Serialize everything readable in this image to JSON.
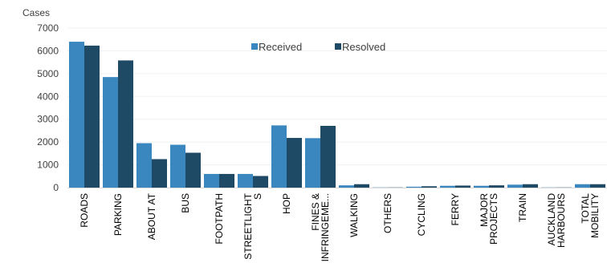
{
  "chart_data": {
    "type": "bar",
    "ylabel": "Cases",
    "ylim": [
      0,
      7000
    ],
    "yticks": [
      0,
      1000,
      2000,
      3000,
      4000,
      5000,
      6000,
      7000
    ],
    "grid": true,
    "legend_position": "top-center",
    "categories": [
      [
        "ROADS"
      ],
      [
        "PARKING"
      ],
      [
        "ABOUT AT"
      ],
      [
        "BUS"
      ],
      [
        "FOOTPATH"
      ],
      [
        "STREETLIGHT",
        "S"
      ],
      [
        "HOP"
      ],
      [
        "FINES &",
        "INFRINGEME..."
      ],
      [
        "WALKING"
      ],
      [
        "OTHERS"
      ],
      [
        "CYCLING"
      ],
      [
        "FERRY"
      ],
      [
        "MAJOR",
        "PROJECTS"
      ],
      [
        "TRAIN"
      ],
      [
        "AUCKLAND",
        "HARBOURS"
      ],
      [
        "TOTAL",
        "MOBILITY"
      ]
    ],
    "series": [
      {
        "name": "Received",
        "color": "#3a87c0",
        "values": [
          6400,
          4850,
          1950,
          1880,
          600,
          600,
          2730,
          2170,
          100,
          10,
          40,
          80,
          80,
          130,
          10,
          150
        ]
      },
      {
        "name": "Resolved",
        "color": "#1e4a66",
        "values": [
          6230,
          5580,
          1250,
          1530,
          600,
          510,
          2180,
          2710,
          150,
          10,
          60,
          90,
          100,
          150,
          10,
          150
        ]
      }
    ]
  }
}
